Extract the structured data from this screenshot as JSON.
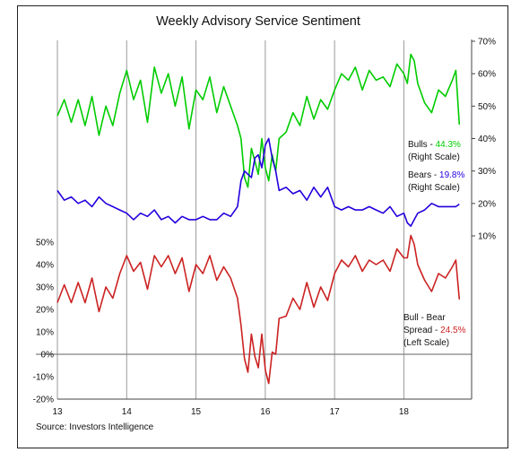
{
  "chart_data": {
    "type": "line",
    "title": "Weekly Advisory Service Sentiment",
    "source": "Source: Investors Intelligence",
    "x_ticks": [
      "13",
      "14",
      "15",
      "16",
      "17",
      "18"
    ],
    "x_range": [
      2013,
      2018.9
    ],
    "right_axis": {
      "ticks": [
        "10%",
        "20%",
        "30%",
        "40%",
        "50%",
        "60%",
        "70%"
      ],
      "range": [
        0,
        70
      ]
    },
    "left_axis": {
      "ticks": [
        "-20%",
        "-10%",
        "0%",
        "10%",
        "20%",
        "30%",
        "40%",
        "50%"
      ],
      "range": [
        -20,
        50
      ]
    },
    "vertical_grid": true,
    "series": [
      {
        "name": "Bulls",
        "axis": "right",
        "color": "#00cc00",
        "legend": [
          "Bulls - ",
          "44.3%",
          "(Right Scale)"
        ],
        "x": [
          2013.0,
          2013.1,
          2013.2,
          2013.3,
          2013.4,
          2013.5,
          2013.6,
          2013.7,
          2013.8,
          2013.9,
          2014.0,
          2014.1,
          2014.2,
          2014.3,
          2014.4,
          2014.5,
          2014.6,
          2014.7,
          2014.8,
          2014.9,
          2015.0,
          2015.1,
          2015.2,
          2015.3,
          2015.4,
          2015.5,
          2015.6,
          2015.65,
          2015.7,
          2015.75,
          2015.8,
          2015.85,
          2015.9,
          2015.95,
          2016.0,
          2016.05,
          2016.1,
          2016.15,
          2016.2,
          2016.3,
          2016.4,
          2016.5,
          2016.6,
          2016.7,
          2016.8,
          2016.9,
          2017.0,
          2017.1,
          2017.2,
          2017.3,
          2017.4,
          2017.5,
          2017.6,
          2017.7,
          2017.8,
          2017.9,
          2018.0,
          2018.05,
          2018.1,
          2018.15,
          2018.2,
          2018.3,
          2018.4,
          2018.5,
          2018.6,
          2018.7,
          2018.75,
          2018.8
        ],
        "values": [
          47,
          52,
          45,
          52,
          44,
          53,
          41,
          50,
          44,
          54,
          61,
          52,
          58,
          45,
          62,
          54,
          60,
          50,
          59,
          43,
          55,
          52,
          59,
          48,
          56,
          50,
          44,
          40,
          28,
          25,
          37,
          33,
          29,
          40,
          31,
          27,
          35,
          30,
          40,
          42,
          48,
          44,
          53,
          46,
          52,
          49,
          55,
          60,
          58,
          62,
          55,
          61,
          58,
          59,
          56,
          63,
          60,
          57,
          66,
          64,
          57,
          51,
          48,
          55,
          53,
          58,
          61,
          44.3
        ]
      },
      {
        "name": "Bears",
        "axis": "right",
        "color": "#2200dd",
        "legend": [
          "Bears - ",
          "19.8%",
          "(Right Scale)"
        ],
        "x": [
          2013.0,
          2013.1,
          2013.2,
          2013.3,
          2013.4,
          2013.5,
          2013.6,
          2013.7,
          2013.8,
          2013.9,
          2014.0,
          2014.1,
          2014.2,
          2014.3,
          2014.4,
          2014.5,
          2014.6,
          2014.7,
          2014.8,
          2014.9,
          2015.0,
          2015.1,
          2015.2,
          2015.3,
          2015.4,
          2015.5,
          2015.6,
          2015.65,
          2015.7,
          2015.75,
          2015.8,
          2015.85,
          2015.9,
          2015.95,
          2016.0,
          2016.05,
          2016.1,
          2016.15,
          2016.2,
          2016.3,
          2016.4,
          2016.5,
          2016.6,
          2016.7,
          2016.8,
          2016.9,
          2017.0,
          2017.1,
          2017.2,
          2017.3,
          2017.4,
          2017.5,
          2017.6,
          2017.7,
          2017.8,
          2017.9,
          2018.0,
          2018.05,
          2018.1,
          2018.15,
          2018.2,
          2018.3,
          2018.4,
          2018.5,
          2018.6,
          2018.7,
          2018.75,
          2018.8
        ],
        "values": [
          24,
          21,
          22,
          20,
          21,
          19,
          22,
          20,
          19,
          18,
          17,
          15,
          17,
          16,
          18,
          15,
          16,
          14,
          16,
          15,
          15,
          16,
          15,
          15,
          17,
          16,
          19,
          27,
          30,
          29,
          28,
          34,
          35,
          31,
          38,
          40,
          34,
          30,
          24,
          25,
          23,
          24,
          21,
          25,
          22,
          25,
          19,
          18,
          19,
          18,
          18,
          19,
          18,
          17,
          19,
          16,
          17,
          14,
          13,
          15,
          17,
          18,
          20,
          19,
          19,
          19,
          19,
          19.8
        ]
      },
      {
        "name": "Bull - Bear Spread",
        "axis": "left",
        "color": "#cc2222",
        "legend": [
          "Bull - Bear",
          "Spread - ",
          "24.5%",
          "(Left Scale)"
        ],
        "x": [
          2013.0,
          2013.1,
          2013.2,
          2013.3,
          2013.4,
          2013.5,
          2013.6,
          2013.7,
          2013.8,
          2013.9,
          2014.0,
          2014.1,
          2014.2,
          2014.3,
          2014.4,
          2014.5,
          2014.6,
          2014.7,
          2014.8,
          2014.9,
          2015.0,
          2015.1,
          2015.2,
          2015.3,
          2015.4,
          2015.5,
          2015.6,
          2015.65,
          2015.7,
          2015.75,
          2015.8,
          2015.85,
          2015.9,
          2015.95,
          2016.0,
          2016.05,
          2016.1,
          2016.15,
          2016.2,
          2016.3,
          2016.4,
          2016.5,
          2016.6,
          2016.7,
          2016.8,
          2016.9,
          2017.0,
          2017.1,
          2017.2,
          2017.3,
          2017.4,
          2017.5,
          2017.6,
          2017.7,
          2017.8,
          2017.9,
          2018.0,
          2018.05,
          2018.1,
          2018.15,
          2018.2,
          2018.3,
          2018.4,
          2018.5,
          2018.6,
          2018.7,
          2018.75,
          2018.8
        ],
        "values": [
          23,
          31,
          23,
          32,
          23,
          34,
          19,
          30,
          25,
          36,
          44,
          37,
          41,
          29,
          44,
          39,
          44,
          36,
          43,
          28,
          40,
          36,
          44,
          33,
          39,
          34,
          25,
          13,
          -2,
          -8,
          9,
          -1,
          -6,
          9,
          -7,
          -13,
          1,
          0,
          16,
          17,
          25,
          20,
          32,
          21,
          30,
          24,
          36,
          42,
          39,
          44,
          37,
          42,
          40,
          42,
          37,
          47,
          43,
          43,
          53,
          49,
          40,
          33,
          28,
          36,
          34,
          39,
          42,
          24.5
        ]
      }
    ]
  }
}
